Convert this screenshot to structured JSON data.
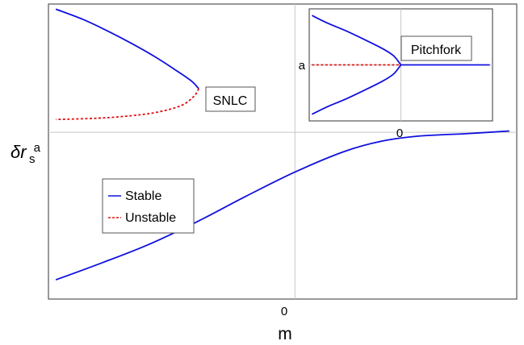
{
  "chart_data": {
    "type": "line",
    "xlabel": "m",
    "ylabel_main": "δr",
    "ylabel_sub": "s",
    "x_ticks": [
      {
        "x": 0,
        "label": "0"
      }
    ],
    "y_ticks": [
      {
        "y": 0,
        "label": "a"
      }
    ],
    "xlim": [
      -1.0,
      0.9
    ],
    "ylim": [
      -1.3,
      1.0
    ],
    "grid": "crosshair at x=0, y=a",
    "legend": {
      "placement": "lower-left",
      "entries": [
        {
          "label": "Stable",
          "color": "#1010e0",
          "style": "solid"
        },
        {
          "label": "Unstable",
          "color": "#e01010",
          "style": "dashed"
        }
      ]
    },
    "annotations": [
      {
        "text": "SNLC",
        "at": {
          "x": -0.35,
          "y": 0.38
        }
      }
    ],
    "series": [
      {
        "style": "stable",
        "color": "#1010e0",
        "points": [
          [
            -0.97,
            0.96
          ],
          [
            -0.86,
            0.88
          ],
          [
            -0.76,
            0.79
          ],
          [
            -0.66,
            0.69
          ],
          [
            -0.56,
            0.58
          ],
          [
            -0.48,
            0.48
          ],
          [
            -0.42,
            0.4
          ],
          [
            -0.39,
            0.34
          ]
        ]
      },
      {
        "style": "unstable",
        "color": "#e01010",
        "points": [
          [
            -0.39,
            0.34
          ],
          [
            -0.41,
            0.28
          ],
          [
            -0.46,
            0.21
          ],
          [
            -0.55,
            0.16
          ],
          [
            -0.66,
            0.13
          ],
          [
            -0.8,
            0.11
          ],
          [
            -0.97,
            0.1
          ]
        ]
      },
      {
        "style": "stable",
        "color": "#1010e0",
        "points": [
          [
            -0.97,
            -1.15
          ],
          [
            -0.8,
            -1.03
          ],
          [
            -0.6,
            -0.88
          ],
          [
            -0.4,
            -0.7
          ],
          [
            -0.2,
            -0.5
          ],
          [
            0,
            -0.31
          ],
          [
            0.2,
            -0.15
          ],
          [
            0.35,
            -0.07
          ],
          [
            0.5,
            -0.03
          ],
          [
            0.7,
            -0.01
          ],
          [
            0.87,
            0.01
          ]
        ]
      }
    ],
    "inset": {
      "title": "Pitchfork",
      "x_ticks": [
        {
          "x": 0,
          "label": "0"
        }
      ],
      "y_ticks": [
        {
          "y": 0,
          "label": "a"
        }
      ],
      "xlim": [
        -1.0,
        1.0
      ],
      "ylim": [
        -1.1,
        1.1
      ],
      "series": [
        {
          "style": "stable",
          "color": "#1010e0",
          "points": [
            [
              -0.97,
              0.97
            ],
            [
              -0.8,
              0.82
            ],
            [
              -0.6,
              0.67
            ],
            [
              -0.4,
              0.5
            ],
            [
              -0.2,
              0.32
            ],
            [
              -0.08,
              0.18
            ],
            [
              0,
              0
            ]
          ]
        },
        {
          "style": "stable",
          "color": "#1010e0",
          "points": [
            [
              -0.97,
              -0.97
            ],
            [
              -0.8,
              -0.82
            ],
            [
              -0.6,
              -0.67
            ],
            [
              -0.4,
              -0.5
            ],
            [
              -0.2,
              -0.32
            ],
            [
              -0.08,
              -0.18
            ],
            [
              0,
              0
            ]
          ]
        },
        {
          "style": "unstable",
          "color": "#e01010",
          "points": [
            [
              -0.97,
              0
            ],
            [
              0,
              0
            ]
          ]
        },
        {
          "style": "stable",
          "color": "#1010e0",
          "points": [
            [
              0,
              0
            ],
            [
              0.97,
              0
            ]
          ]
        }
      ]
    }
  }
}
